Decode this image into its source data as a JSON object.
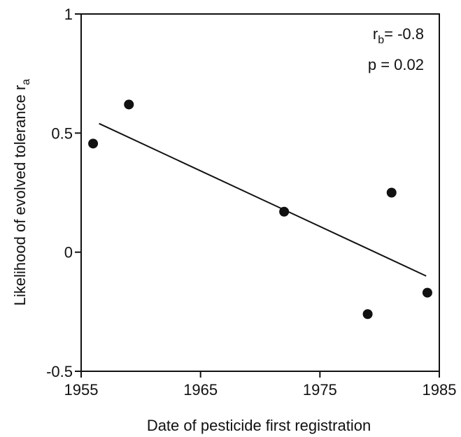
{
  "chart_data": {
    "type": "scatter",
    "x_label": "Date of pesticide first registration",
    "y_label": {
      "text": "Likelihood of evolved tolerance r",
      "subscript": "a"
    },
    "annotations": [
      {
        "text": "r",
        "subscript": "b",
        "suffix": "= -0.8"
      },
      {
        "text": "p = 0.02"
      }
    ],
    "x": [
      1956,
      1959,
      1972,
      1979,
      1981,
      1984
    ],
    "y": [
      0.456,
      0.62,
      0.17,
      -0.26,
      0.25,
      -0.17
    ],
    "color": "#111111",
    "fit_line": {
      "x": [
        1956.5,
        1983.9
      ],
      "y": [
        0.54,
        -0.1
      ]
    },
    "xlim": [
      1955,
      1985
    ],
    "ylim": [
      -0.5,
      1
    ],
    "xticks": [
      1955,
      1965,
      1975,
      1985
    ],
    "yticks": [
      -0.5,
      0,
      0.5,
      1
    ],
    "grid": false
  }
}
